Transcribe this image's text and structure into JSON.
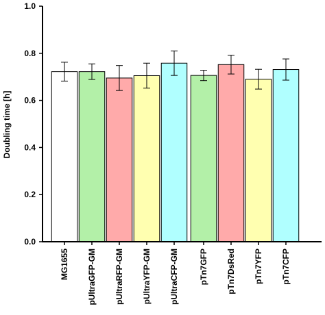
{
  "chart_data": {
    "type": "bar",
    "title": "",
    "xlabel": "",
    "ylabel": "Doubling time [h]",
    "ylim": [
      0,
      1.0
    ],
    "yticks": [
      "0.0",
      "0.2",
      "0.4",
      "0.6",
      "0.8",
      "1.0"
    ],
    "grid": false,
    "legend": "none",
    "categories": [
      "MG1655",
      "pUltraGFP-GM",
      "pUltraRFP-GM",
      "pUltraYFP-GM",
      "pUltraCFP-GM",
      "pTn7GFP",
      "pTn7DsRed",
      "pTn7YFP",
      "pTn7CFP"
    ],
    "values": [
      0.722,
      0.722,
      0.695,
      0.705,
      0.758,
      0.706,
      0.752,
      0.69,
      0.731
    ],
    "errors": [
      0.04,
      0.033,
      0.053,
      0.053,
      0.052,
      0.022,
      0.04,
      0.042,
      0.045
    ],
    "colors": [
      "#ffffff",
      "#b3f0a8",
      "#ffaaaa",
      "#ffffb0",
      "#b0ffff",
      "#b3f0a8",
      "#ffaaaa",
      "#ffffb0",
      "#b0ffff"
    ]
  }
}
